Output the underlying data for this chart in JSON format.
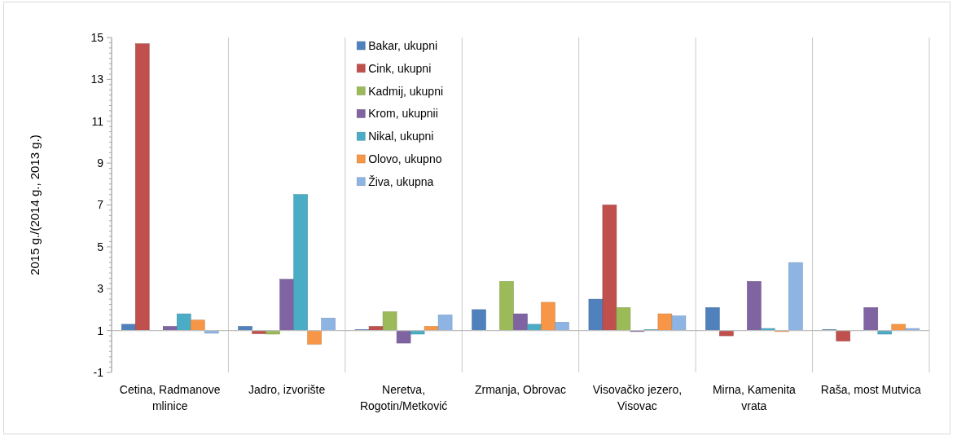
{
  "chart_data": {
    "type": "bar",
    "ylabel": "2015 g./(2014 g., 2013 g.)",
    "categories": [
      "Cetina, Radmanove mlinice",
      "Jadro, izvorište",
      "Neretva, Rogotin/Metković",
      "Zrmanja, Obrovac",
      "Visovačko jezero, Visovac",
      "Mirna, Kamenita vrata",
      "Raša, most Mutvica"
    ],
    "series": [
      {
        "name": "Bakar, ukupni",
        "color": "#4f81bd",
        "values": [
          0.3,
          0.2,
          0.05,
          1.0,
          1.5,
          1.1,
          0.05
        ],
        "base": [
          1,
          1,
          1,
          1,
          1,
          1,
          1
        ]
      },
      {
        "name": "Cink, ukupni",
        "color": "#c0504d",
        "values": [
          13.7,
          -0.15,
          0.2,
          null,
          6.0,
          -0.25,
          -0.5
        ],
        "base": [
          1,
          1,
          1,
          null,
          1,
          1,
          1
        ]
      },
      {
        "name": "Kadmij, ukupni",
        "color": "#9bbb59",
        "values": [
          null,
          -0.17,
          0.9,
          2.35,
          1.1,
          null,
          null
        ],
        "base": [
          null,
          1,
          1,
          1,
          1,
          null,
          null
        ]
      },
      {
        "name": "Krom, ukupnii",
        "color": "#8064a2",
        "values": [
          0.2,
          2.45,
          -0.6,
          0.8,
          -0.05,
          2.35,
          1.1
        ],
        "base": [
          1,
          1,
          1,
          1,
          1,
          1,
          1
        ]
      },
      {
        "name": "Nikal, ukupni",
        "color": "#4bacc6",
        "values": [
          0.8,
          6.5,
          -0.17,
          0.3,
          0.05,
          0.1,
          -0.17
        ],
        "base": [
          1,
          1,
          1,
          1,
          1,
          1,
          1
        ]
      },
      {
        "name": "Olovo, ukupno",
        "color": "#f79646",
        "values": [
          0.5,
          -0.65,
          0.2,
          1.35,
          0.8,
          -0.05,
          0.3
        ],
        "base": [
          1,
          1,
          1,
          1,
          1,
          1,
          1
        ]
      },
      {
        "name": "Živa, ukupna",
        "color": "#8eb4e3",
        "values": [
          -0.13,
          0.6,
          0.75,
          0.4,
          0.7,
          3.25,
          0.1
        ],
        "base": [
          1,
          1,
          1,
          1,
          1,
          1,
          1
        ]
      }
    ],
    "ylim": [
      -1,
      15
    ],
    "yticks": [
      -1,
      {
        "value": -0.75,
        "label": null
      },
      {
        "value": -0.5,
        "label": null
      },
      {
        "value": -0.25,
        "label": null
      },
      {
        "value": 0,
        "label": null
      },
      {
        "value": 0.25,
        "label": null
      },
      {
        "value": 0.5,
        "label": null
      },
      {
        "value": 0.75,
        "label": null
      },
      1,
      {
        "value": 1.25,
        "label": null
      },
      {
        "value": 1.5,
        "label": null
      },
      {
        "value": 1.75,
        "label": null
      },
      {
        "value": 2,
        "label": null
      },
      {
        "value": 2.25,
        "label": null
      },
      {
        "value": 2.5,
        "label": null
      },
      {
        "value": 2.75,
        "label": null
      },
      3,
      {
        "value": 3.25,
        "label": null
      },
      {
        "value": 3.5,
        "label": null
      },
      {
        "value": 3.75,
        "label": null
      },
      {
        "value": 4,
        "label": null
      },
      {
        "value": 4.25,
        "label": null
      },
      {
        "value": 4.5,
        "label": null
      },
      {
        "value": 4.75,
        "label": null
      },
      5,
      {
        "value": 5.25,
        "label": null
      },
      {
        "value": 5.5,
        "label": null
      },
      {
        "value": 5.75,
        "label": null
      },
      {
        "value": 6,
        "label": null
      },
      {
        "value": 6.25,
        "label": null
      },
      {
        "value": 6.5,
        "label": null
      },
      {
        "value": 6.75,
        "label": null
      },
      7,
      {
        "value": 7.25,
        "label": null
      },
      {
        "value": 7.5,
        "label": null
      },
      {
        "value": 7.75,
        "label": null
      },
      {
        "value": 8,
        "label": null
      },
      {
        "value": 8.25,
        "label": null
      },
      {
        "value": 8.5,
        "label": null
      },
      {
        "value": 8.75,
        "label": null
      },
      9,
      {
        "value": 9.25,
        "label": null
      },
      {
        "value": 9.5,
        "label": null
      },
      {
        "value": 9.75,
        "label": null
      },
      {
        "value": 10,
        "label": null
      },
      {
        "value": 10.25,
        "label": null
      },
      {
        "value": 10.5,
        "label": null
      },
      {
        "value": 10.75,
        "label": null
      },
      11,
      {
        "value": 11.25,
        "label": null
      },
      {
        "value": 11.5,
        "label": null
      },
      {
        "value": 11.75,
        "label": null
      },
      {
        "value": 12,
        "label": null
      },
      {
        "value": 12.25,
        "label": null
      },
      {
        "value": 12.5,
        "label": null
      },
      {
        "value": 12.75,
        "label": null
      },
      13,
      {
        "value": 13.25,
        "label": null
      },
      {
        "value": 13.5,
        "label": null
      },
      {
        "value": 13.75,
        "label": null
      },
      {
        "value": 14,
        "label": null
      },
      {
        "value": 14.25,
        "label": null
      },
      {
        "value": 14.5,
        "label": null
      },
      {
        "value": 14.75,
        "label": null
      },
      15
    ],
    "ref_lines": [
      {
        "axis": "y",
        "value": 1,
        "color": "#bfbfbf"
      }
    ],
    "grid": "x",
    "legend": "top"
  }
}
